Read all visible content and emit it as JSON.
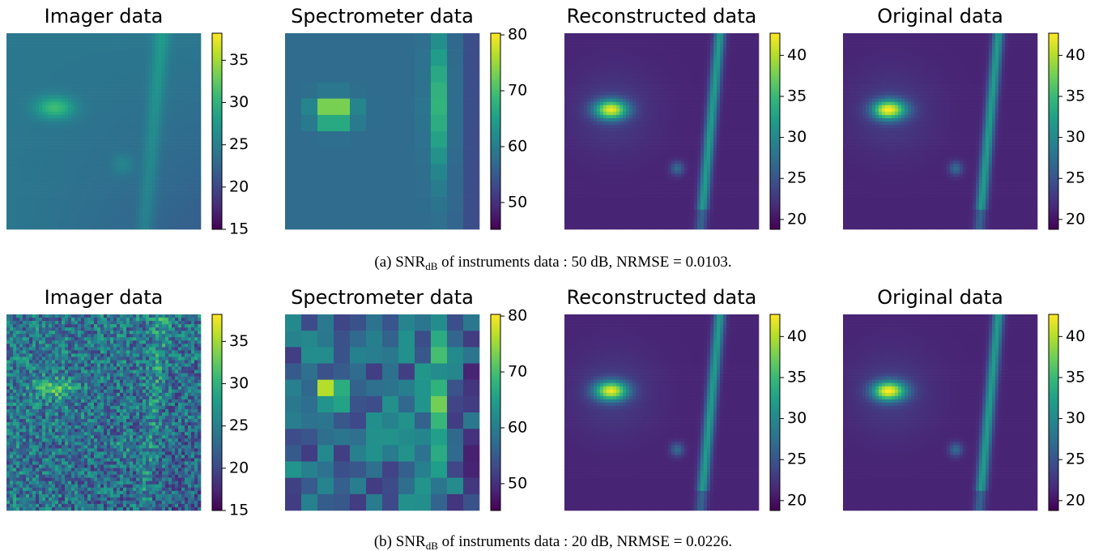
{
  "rows": [
    {
      "panels": [
        {
          "title": "Imager data",
          "clim": [
            15,
            38.2
          ],
          "ticks": [
            15,
            20,
            25,
            30,
            35
          ]
        },
        {
          "title": "Spectrometer data",
          "clim": [
            45.2,
            80.3
          ],
          "ticks": [
            50,
            60,
            70,
            80
          ]
        },
        {
          "title": "Reconstructed data",
          "clim": [
            18.8,
            42.7
          ],
          "ticks": [
            20,
            25,
            30,
            35,
            40
          ]
        },
        {
          "title": "Original data",
          "clim": [
            18.8,
            42.7
          ],
          "ticks": [
            20,
            25,
            30,
            35,
            40
          ]
        }
      ],
      "caption": {
        "prefix": "(a) SNR",
        "sub": "dB",
        "rest": " of instruments data : 50 dB, NRMSE = 0.0103."
      }
    },
    {
      "panels": [
        {
          "title": "Imager data",
          "clim": [
            15,
            38.2
          ],
          "ticks": [
            15,
            20,
            25,
            30,
            35
          ]
        },
        {
          "title": "Spectrometer data",
          "clim": [
            45.2,
            80.3
          ],
          "ticks": [
            50,
            60,
            70,
            80
          ]
        },
        {
          "title": "Reconstructed data",
          "clim": [
            18.8,
            42.7
          ],
          "ticks": [
            20,
            25,
            30,
            35,
            40
          ]
        },
        {
          "title": "Original data",
          "clim": [
            18.8,
            42.7
          ],
          "ticks": [
            20,
            25,
            30,
            35,
            40
          ]
        }
      ],
      "caption": {
        "prefix": "(b) SNR",
        "sub": "dB",
        "rest": " of instruments data : 20 dB, NRMSE = 0.0226."
      }
    }
  ]
}
